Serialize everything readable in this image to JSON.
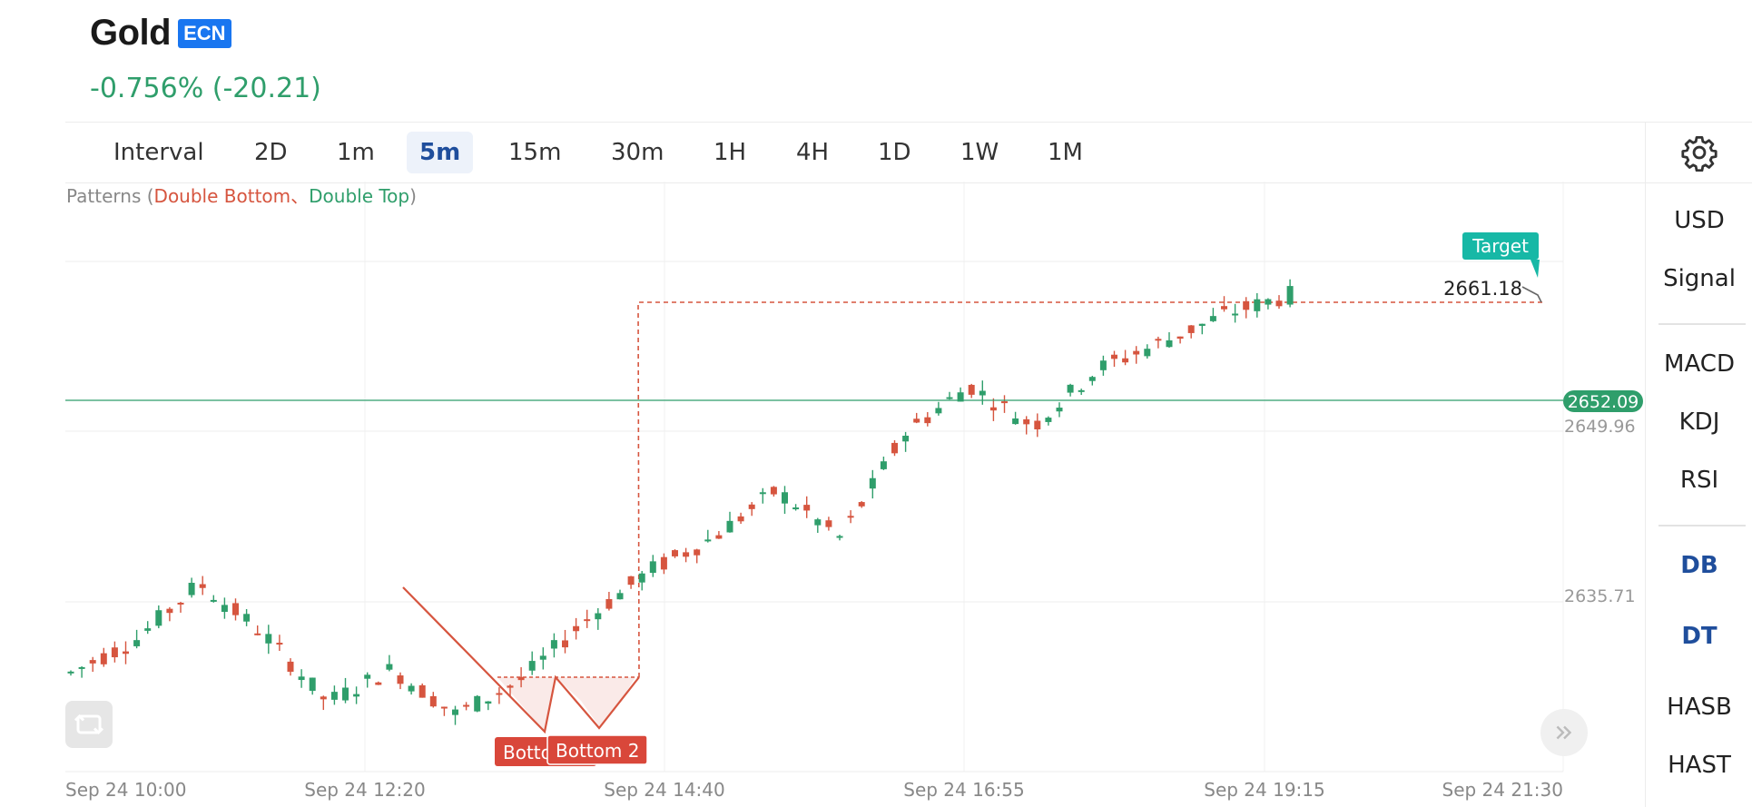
{
  "header": {
    "title": "Gold",
    "badge": "ECN",
    "change": "-0.756% (-20.21)"
  },
  "intervals": [
    {
      "label": "Interval",
      "active": false
    },
    {
      "label": "2D",
      "active": false
    },
    {
      "label": "1m",
      "active": false
    },
    {
      "label": "5m",
      "active": true
    },
    {
      "label": "15m",
      "active": false
    },
    {
      "label": "30m",
      "active": false
    },
    {
      "label": "1H",
      "active": false
    },
    {
      "label": "4H",
      "active": false
    },
    {
      "label": "1D",
      "active": false
    },
    {
      "label": "1W",
      "active": false
    },
    {
      "label": "1M",
      "active": false
    }
  ],
  "settings_icon": "gear-icon",
  "sidebar": {
    "top": [
      "USD",
      "Signal"
    ],
    "indicators": [
      "MACD",
      "KDJ",
      "RSI"
    ],
    "patterns": [
      "DB",
      "DT",
      "HASB",
      "HAST"
    ]
  },
  "patterns_legend": {
    "prefix": "Patterns (",
    "double_bottom": "Double Bottom",
    "sep": "、",
    "double_top": "Double Top",
    "suffix": ")"
  },
  "chart_data": {
    "type": "candlestick",
    "instrument": "Gold",
    "interval": "5m",
    "x_tick_labels": [
      "Sep 24 10:00",
      "Sep 24 12:20",
      "Sep 24 14:40",
      "Sep 24 16:55",
      "Sep 24 19:15",
      "Sep 24 21:30"
    ],
    "y_tick_labels": [
      "2649.96",
      "2635.71"
    ],
    "current_price": "2652.09",
    "target_label": "Target",
    "target_price": "2661.18",
    "pattern_labels": [
      "Bottom 1",
      "Bottom 2"
    ],
    "approx_ohlc_sample": [
      [
        2630.0,
        2631.0,
        2628.8,
        2629.3
      ],
      [
        2629.3,
        2632.4,
        2629.0,
        2632.0
      ],
      [
        2632.0,
        2637.5,
        2631.5,
        2636.8
      ],
      [
        2636.8,
        2637.0,
        2632.2,
        2632.6
      ],
      [
        2632.6,
        2633.0,
        2626.2,
        2626.8
      ],
      [
        2626.8,
        2630.0,
        2626.4,
        2629.6
      ],
      [
        2629.6,
        2630.0,
        2625.2,
        2625.8
      ],
      [
        2625.8,
        2629.0,
        2625.5,
        2628.6
      ],
      [
        2628.6,
        2634.0,
        2628.0,
        2633.6
      ],
      [
        2633.6,
        2638.4,
        2631.0,
        2637.8
      ],
      [
        2637.8,
        2641.2,
        2637.0,
        2640.6
      ],
      [
        2640.6,
        2646.0,
        2639.0,
        2644.6
      ],
      [
        2644.6,
        2646.5,
        2640.0,
        2640.6
      ],
      [
        2640.6,
        2650.0,
        2640.0,
        2649.4
      ],
      [
        2649.4,
        2654.9,
        2648.0,
        2653.4
      ],
      [
        2653.4,
        2654.0,
        2649.2,
        2650.0
      ],
      [
        2650.0,
        2655.6,
        2649.0,
        2654.8
      ],
      [
        2654.8,
        2657.5,
        2654.0,
        2657.0
      ],
      [
        2657.0,
        2661.8,
        2656.4,
        2659.4
      ],
      [
        2659.4,
        2661.4,
        2658.0,
        2661.0
      ]
    ]
  }
}
